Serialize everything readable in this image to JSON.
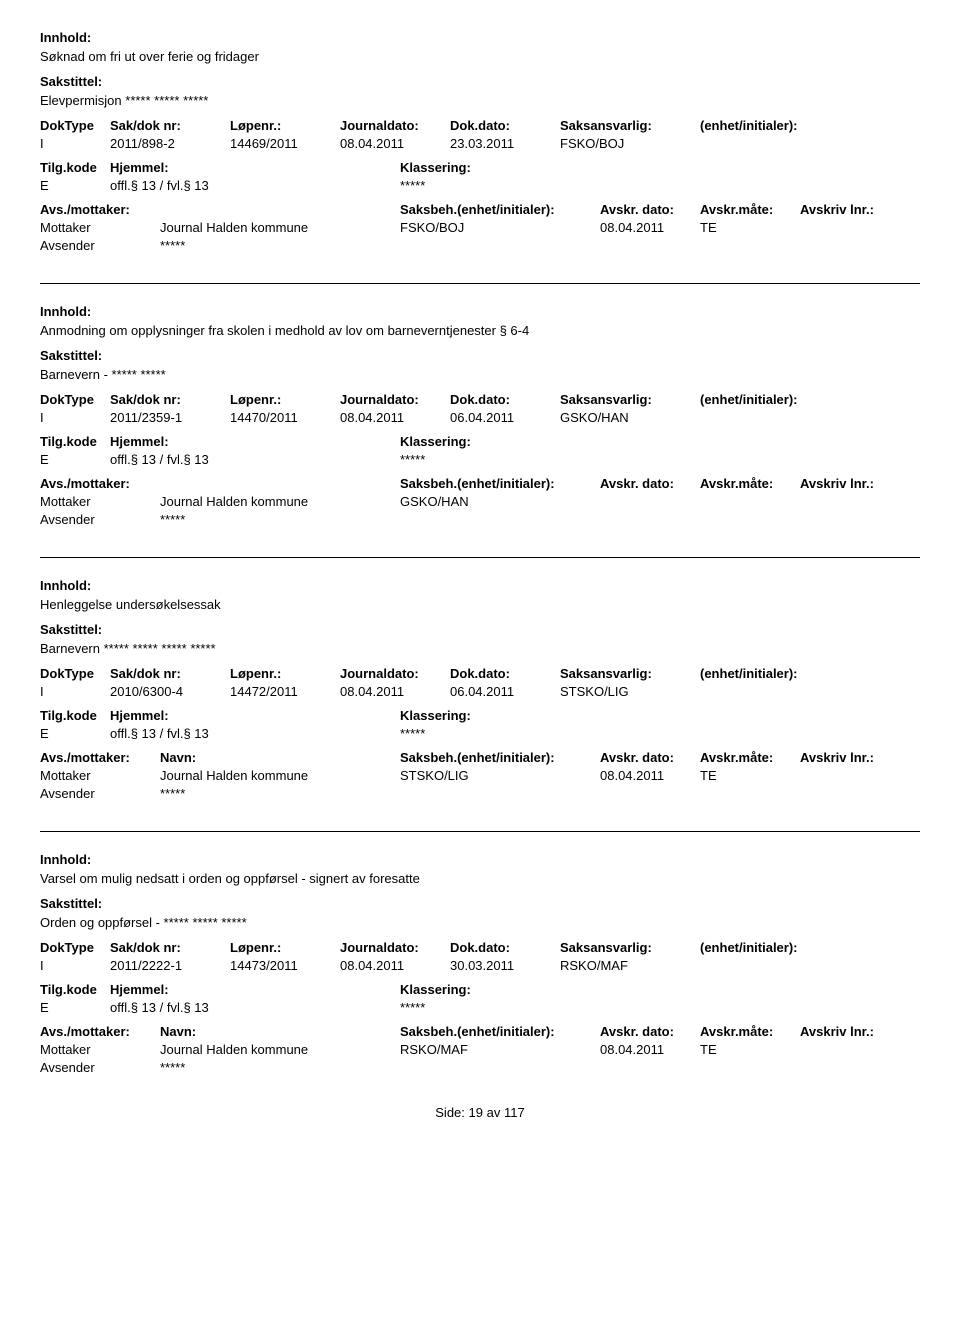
{
  "labels": {
    "innhold": "Innhold:",
    "sakstittel": "Sakstittel:",
    "doktype": "DokType",
    "saknr": "Sak/dok nr:",
    "lopenr": "Løpenr.:",
    "journaldato": "Journaldato:",
    "dokdato": "Dok.dato:",
    "saksansvarlig": "Saksansvarlig:",
    "enhet": "(enhet/initialer):",
    "tilgkode": "Tilg.kode",
    "hjemmel": "Hjemmel:",
    "klassering": "Klassering:",
    "avsmot": "Avs./mottaker:",
    "navn": "Navn:",
    "saksbeh": "Saksbeh.(enhet/initialer):",
    "avskrdato": "Avskr. dato:",
    "avskrmate": "Avskr.måte:",
    "avskrlnr": "Avskriv lnr.:",
    "mottaker": "Mottaker",
    "avsender": "Avsender"
  },
  "footer": {
    "side": "Side:",
    "page": "19",
    "av": "av",
    "total": "117"
  },
  "entries": [
    {
      "innhold": "Søknad om fri ut over ferie og fridager",
      "sakstittel": "Elevpermisjon ***** ***** *****",
      "doktype": "I",
      "saknr": "2011/898-2",
      "lopenr": "14469/2011",
      "jdato": "08.04.2011",
      "ddato": "23.03.2011",
      "ansvar": "FSKO/BOJ",
      "tilgkode": "E",
      "hjemmel": "offl.§ 13 / fvl.§ 13",
      "klassv": "*****",
      "showAvsHeader": false,
      "mottaker_navn": "Journal Halden kommune",
      "mottaker_beh": "FSKO/BOJ",
      "mottaker_avskrd": "08.04.2011",
      "mottaker_avskrm": "TE",
      "avsender_navn": "*****"
    },
    {
      "innhold": "Anmodning om opplysninger fra skolen i medhold av lov om barneverntjenester § 6-4",
      "sakstittel": "Barnevern - ***** *****",
      "doktype": "I",
      "saknr": "2011/2359-1",
      "lopenr": "14470/2011",
      "jdato": "08.04.2011",
      "ddato": "06.04.2011",
      "ansvar": "GSKO/HAN",
      "tilgkode": "E",
      "hjemmel": "offl.§ 13 / fvl.§ 13",
      "klassv": "*****",
      "showAvsHeader": false,
      "mottaker_navn": "Journal Halden kommune",
      "mottaker_beh": "GSKO/HAN",
      "mottaker_avskrd": "",
      "mottaker_avskrm": "",
      "avsender_navn": "*****"
    },
    {
      "innhold": "Henleggelse undersøkelsessak",
      "sakstittel": "Barnevern ***** ***** ***** *****",
      "doktype": "I",
      "saknr": "2010/6300-4",
      "lopenr": "14472/2011",
      "jdato": "08.04.2011",
      "ddato": "06.04.2011",
      "ansvar": "STSKO/LIG",
      "tilgkode": "E",
      "hjemmel": "offl.§ 13 / fvl.§ 13",
      "klassv": "*****",
      "showAvsHeader": true,
      "mottaker_navn": "Journal Halden kommune",
      "mottaker_beh": "STSKO/LIG",
      "mottaker_avskrd": "08.04.2011",
      "mottaker_avskrm": "TE",
      "avsender_navn": "*****"
    },
    {
      "innhold": "Varsel om mulig nedsatt i orden og oppførsel - signert av foresatte",
      "sakstittel": "Orden og oppførsel - ***** ***** *****",
      "doktype": "I",
      "saknr": "2011/2222-1",
      "lopenr": "14473/2011",
      "jdato": "08.04.2011",
      "ddato": "30.03.2011",
      "ansvar": "RSKO/MAF",
      "tilgkode": "E",
      "hjemmel": "offl.§ 13 / fvl.§ 13",
      "klassv": "*****",
      "showAvsHeader": true,
      "mottaker_navn": "Journal Halden kommune",
      "mottaker_beh": "RSKO/MAF",
      "mottaker_avskrd": "08.04.2011",
      "mottaker_avskrm": "TE",
      "avsender_navn": "*****"
    }
  ]
}
